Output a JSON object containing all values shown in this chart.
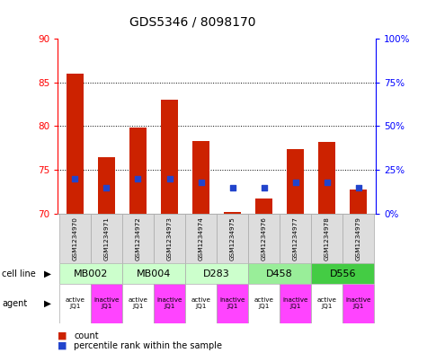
{
  "title": "GDS5346 / 8098170",
  "samples": [
    "GSM1234970",
    "GSM1234971",
    "GSM1234972",
    "GSM1234973",
    "GSM1234974",
    "GSM1234975",
    "GSM1234976",
    "GSM1234977",
    "GSM1234978",
    "GSM1234979"
  ],
  "bar_values": [
    86.0,
    76.5,
    79.8,
    83.0,
    78.3,
    70.2,
    71.7,
    77.4,
    78.2,
    72.8
  ],
  "blue_pct": [
    20,
    15,
    20,
    20,
    18,
    15,
    15,
    18,
    18,
    15
  ],
  "ylim_left": [
    70,
    90
  ],
  "ylim_right": [
    0,
    100
  ],
  "yticks_left": [
    70,
    75,
    80,
    85,
    90
  ],
  "yticks_right": [
    0,
    25,
    50,
    75,
    100
  ],
  "ytick_labels_right": [
    "0%",
    "25%",
    "50%",
    "75%",
    "100%"
  ],
  "cell_lines": [
    {
      "label": "MB002",
      "cols": [
        0,
        1
      ],
      "color": "#ccffcc"
    },
    {
      "label": "MB004",
      "cols": [
        2,
        3
      ],
      "color": "#ccffcc"
    },
    {
      "label": "D283",
      "cols": [
        4,
        5
      ],
      "color": "#ccffcc"
    },
    {
      "label": "D458",
      "cols": [
        6,
        7
      ],
      "color": "#99ee99"
    },
    {
      "label": "D556",
      "cols": [
        8,
        9
      ],
      "color": "#44cc44"
    }
  ],
  "agents": [
    "active\nJQ1",
    "inactive\nJQ1",
    "active\nJQ1",
    "inactive\nJQ1",
    "active\nJQ1",
    "inactive\nJQ1",
    "active\nJQ1",
    "inactive\nJQ1",
    "active\nJQ1",
    "inactive\nJQ1"
  ],
  "agent_colors": [
    "#ffffff",
    "#ff44ff",
    "#ffffff",
    "#ff44ff",
    "#ffffff",
    "#ff44ff",
    "#ffffff",
    "#ff44ff",
    "#ffffff",
    "#ff44ff"
  ],
  "bar_color": "#cc2200",
  "blue_color": "#2244cc",
  "title_fontsize": 10,
  "tick_fontsize": 7.5
}
